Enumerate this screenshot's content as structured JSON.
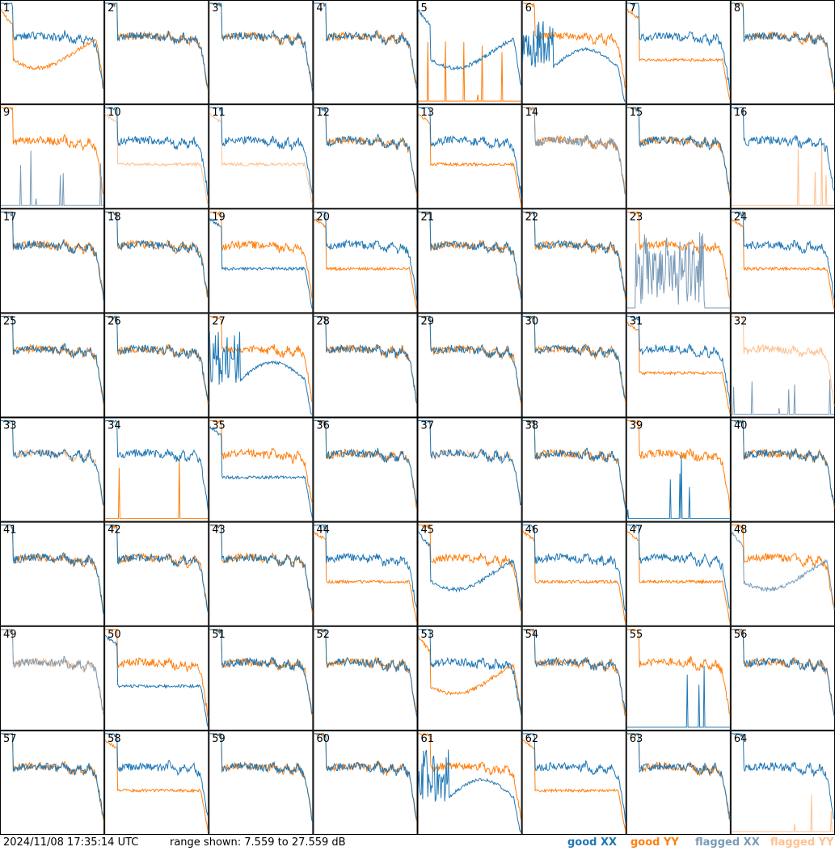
{
  "chart_data": {
    "type": "line",
    "timestamp": "2024/11/08 17:35:14 UTC",
    "range_text": "range shown: 7.559 to 27.559 dB",
    "ylim": [
      7.559,
      27.559
    ],
    "grid": false,
    "legend": [
      {
        "label": "good XX",
        "color": "#1f77b4"
      },
      {
        "label": "good YY",
        "color": "#ff7f0e"
      },
      {
        "label": "flagged XX",
        "color": "#7a9bb8"
      },
      {
        "label": "flagged YY",
        "color": "#ffc08f"
      }
    ],
    "legend_placement": "bottom-right",
    "panels": [
      {
        "id": "1",
        "xx": "good",
        "yy": "good",
        "xx_style": "normal",
        "yy_style": "u"
      },
      {
        "id": "2",
        "xx": "good",
        "yy": "good",
        "xx_style": "normal",
        "yy_style": "normal"
      },
      {
        "id": "3",
        "xx": "good",
        "yy": "good",
        "xx_style": "normal",
        "yy_style": "normal"
      },
      {
        "id": "4",
        "xx": "good",
        "yy": "good",
        "xx_style": "normal",
        "yy_style": "normal"
      },
      {
        "id": "5",
        "xx": "good",
        "yy": "good",
        "xx_style": "u",
        "yy_style": "flat"
      },
      {
        "id": "6",
        "xx": "good",
        "yy": "good",
        "xx_style": "osc",
        "yy_style": "normal"
      },
      {
        "id": "7",
        "xx": "good",
        "yy": "good",
        "xx_style": "normal",
        "yy_style": "low"
      },
      {
        "id": "8",
        "xx": "good",
        "yy": "good",
        "xx_style": "normal",
        "yy_style": "normal"
      },
      {
        "id": "9",
        "xx": "flagged",
        "yy": "good",
        "xx_style": "flat",
        "yy_style": "normal"
      },
      {
        "id": "10",
        "xx": "good",
        "yy": "flagged",
        "xx_style": "normal",
        "yy_style": "low"
      },
      {
        "id": "11",
        "xx": "good",
        "yy": "flagged",
        "xx_style": "normal",
        "yy_style": "low"
      },
      {
        "id": "12",
        "xx": "good",
        "yy": "good",
        "xx_style": "normal",
        "yy_style": "normal"
      },
      {
        "id": "13",
        "xx": "good",
        "yy": "good",
        "xx_style": "normal",
        "yy_style": "low"
      },
      {
        "id": "14",
        "xx": "flagged",
        "yy": "good",
        "xx_style": "normal",
        "yy_style": "normal"
      },
      {
        "id": "15",
        "xx": "good",
        "yy": "good",
        "xx_style": "normal",
        "yy_style": "normal"
      },
      {
        "id": "16",
        "xx": "good",
        "yy": "flagged",
        "xx_style": "normal",
        "yy_style": "flat"
      },
      {
        "id": "17",
        "xx": "good",
        "yy": "good",
        "xx_style": "normal",
        "yy_style": "normal"
      },
      {
        "id": "18",
        "xx": "good",
        "yy": "good",
        "xx_style": "normal",
        "yy_style": "normal"
      },
      {
        "id": "19",
        "xx": "good",
        "yy": "good",
        "xx_style": "low",
        "yy_style": "normal"
      },
      {
        "id": "20",
        "xx": "good",
        "yy": "good",
        "xx_style": "normal",
        "yy_style": "low"
      },
      {
        "id": "21",
        "xx": "good",
        "yy": "good",
        "xx_style": "normal",
        "yy_style": "normal"
      },
      {
        "id": "22",
        "xx": "good",
        "yy": "good",
        "xx_style": "normal",
        "yy_style": "normal"
      },
      {
        "id": "23",
        "xx": "flagged",
        "yy": "good",
        "xx_style": "noisy",
        "yy_style": "normal"
      },
      {
        "id": "24",
        "xx": "good",
        "yy": "good",
        "xx_style": "normal",
        "yy_style": "low"
      },
      {
        "id": "25",
        "xx": "good",
        "yy": "good",
        "xx_style": "normal",
        "yy_style": "normal"
      },
      {
        "id": "26",
        "xx": "good",
        "yy": "good",
        "xx_style": "normal",
        "yy_style": "normal"
      },
      {
        "id": "27",
        "xx": "good",
        "yy": "good",
        "xx_style": "osc",
        "yy_style": "normal"
      },
      {
        "id": "28",
        "xx": "good",
        "yy": "good",
        "xx_style": "normal",
        "yy_style": "normal"
      },
      {
        "id": "29",
        "xx": "good",
        "yy": "good",
        "xx_style": "normal",
        "yy_style": "normal"
      },
      {
        "id": "30",
        "xx": "good",
        "yy": "good",
        "xx_style": "normal",
        "yy_style": "normal"
      },
      {
        "id": "31",
        "xx": "good",
        "yy": "good",
        "xx_style": "normal",
        "yy_style": "low"
      },
      {
        "id": "32",
        "xx": "flagged",
        "yy": "flagged",
        "xx_style": "flat",
        "yy_style": "normal"
      },
      {
        "id": "33",
        "xx": "good",
        "yy": "flagged",
        "xx_style": "normal",
        "yy_style": "normal"
      },
      {
        "id": "34",
        "xx": "good",
        "yy": "good",
        "xx_style": "normal",
        "yy_style": "flat"
      },
      {
        "id": "35",
        "xx": "good",
        "yy": "good",
        "xx_style": "low",
        "yy_style": "normal"
      },
      {
        "id": "36",
        "xx": "good",
        "yy": "good",
        "xx_style": "normal",
        "yy_style": "normal"
      },
      {
        "id": "37",
        "xx": "good",
        "yy": "flagged",
        "xx_style": "normal",
        "yy_style": "normal"
      },
      {
        "id": "38",
        "xx": "good",
        "yy": "good",
        "xx_style": "normal",
        "yy_style": "normal"
      },
      {
        "id": "39",
        "xx": "good",
        "yy": "good",
        "xx_style": "flat",
        "yy_style": "normal"
      },
      {
        "id": "40",
        "xx": "good",
        "yy": "good",
        "xx_style": "normal",
        "yy_style": "normal"
      },
      {
        "id": "41",
        "xx": "good",
        "yy": "good",
        "xx_style": "normal",
        "yy_style": "normal"
      },
      {
        "id": "42",
        "xx": "good",
        "yy": "good",
        "xx_style": "normal",
        "yy_style": "normal"
      },
      {
        "id": "43",
        "xx": "good",
        "yy": "good",
        "xx_style": "normal",
        "yy_style": "normal"
      },
      {
        "id": "44",
        "xx": "good",
        "yy": "good",
        "xx_style": "normal",
        "yy_style": "low"
      },
      {
        "id": "45",
        "xx": "good",
        "yy": "good",
        "xx_style": "u",
        "yy_style": "normal"
      },
      {
        "id": "46",
        "xx": "good",
        "yy": "good",
        "xx_style": "normal",
        "yy_style": "low"
      },
      {
        "id": "47",
        "xx": "good",
        "yy": "good",
        "xx_style": "normal",
        "yy_style": "low"
      },
      {
        "id": "48",
        "xx": "flagged",
        "yy": "good",
        "xx_style": "u",
        "yy_style": "normal"
      },
      {
        "id": "49",
        "xx": "flagged",
        "yy": "flagged",
        "xx_style": "normal",
        "yy_style": "normal"
      },
      {
        "id": "50",
        "xx": "good",
        "yy": "good",
        "xx_style": "low",
        "yy_style": "normal"
      },
      {
        "id": "51",
        "xx": "good",
        "yy": "good",
        "xx_style": "normal",
        "yy_style": "normal"
      },
      {
        "id": "52",
        "xx": "good",
        "yy": "good",
        "xx_style": "normal",
        "yy_style": "normal"
      },
      {
        "id": "53",
        "xx": "good",
        "yy": "good",
        "xx_style": "normal",
        "yy_style": "u"
      },
      {
        "id": "54",
        "xx": "good",
        "yy": "good",
        "xx_style": "normal",
        "yy_style": "normal"
      },
      {
        "id": "55",
        "xx": "good",
        "yy": "good",
        "xx_style": "flat",
        "yy_style": "normal"
      },
      {
        "id": "56",
        "xx": "good",
        "yy": "good",
        "xx_style": "normal",
        "yy_style": "normal"
      },
      {
        "id": "57",
        "xx": "good",
        "yy": "good",
        "xx_style": "normal",
        "yy_style": "normal"
      },
      {
        "id": "58",
        "xx": "good",
        "yy": "good",
        "xx_style": "normal",
        "yy_style": "low"
      },
      {
        "id": "59",
        "xx": "good",
        "yy": "good",
        "xx_style": "normal",
        "yy_style": "normal"
      },
      {
        "id": "60",
        "xx": "good",
        "yy": "good",
        "xx_style": "normal",
        "yy_style": "normal"
      },
      {
        "id": "61",
        "xx": "good",
        "yy": "good",
        "xx_style": "osc",
        "yy_style": "normal"
      },
      {
        "id": "62",
        "xx": "good",
        "yy": "good",
        "xx_style": "normal",
        "yy_style": "low"
      },
      {
        "id": "63",
        "xx": "good",
        "yy": "good",
        "xx_style": "normal",
        "yy_style": "normal"
      },
      {
        "id": "64",
        "xx": "good",
        "yy": "flagged",
        "xx_style": "normal",
        "yy_style": "flat"
      }
    ]
  }
}
